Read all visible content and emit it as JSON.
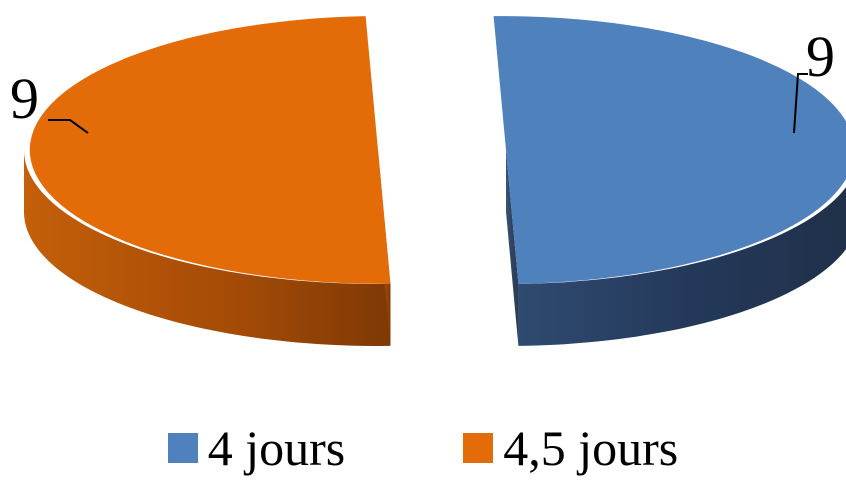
{
  "chart_data": {
    "type": "pie",
    "style": "3d-exploded",
    "title": "",
    "categories": [
      "4 jours",
      "4,5 jours"
    ],
    "values": [
      9,
      9
    ],
    "data_labels": [
      "9",
      "9"
    ],
    "colors": [
      "#4F81BD",
      "#E36C09"
    ],
    "legend": {
      "position": "bottom",
      "entries": [
        "4 jours",
        "4,5 jours"
      ]
    }
  }
}
